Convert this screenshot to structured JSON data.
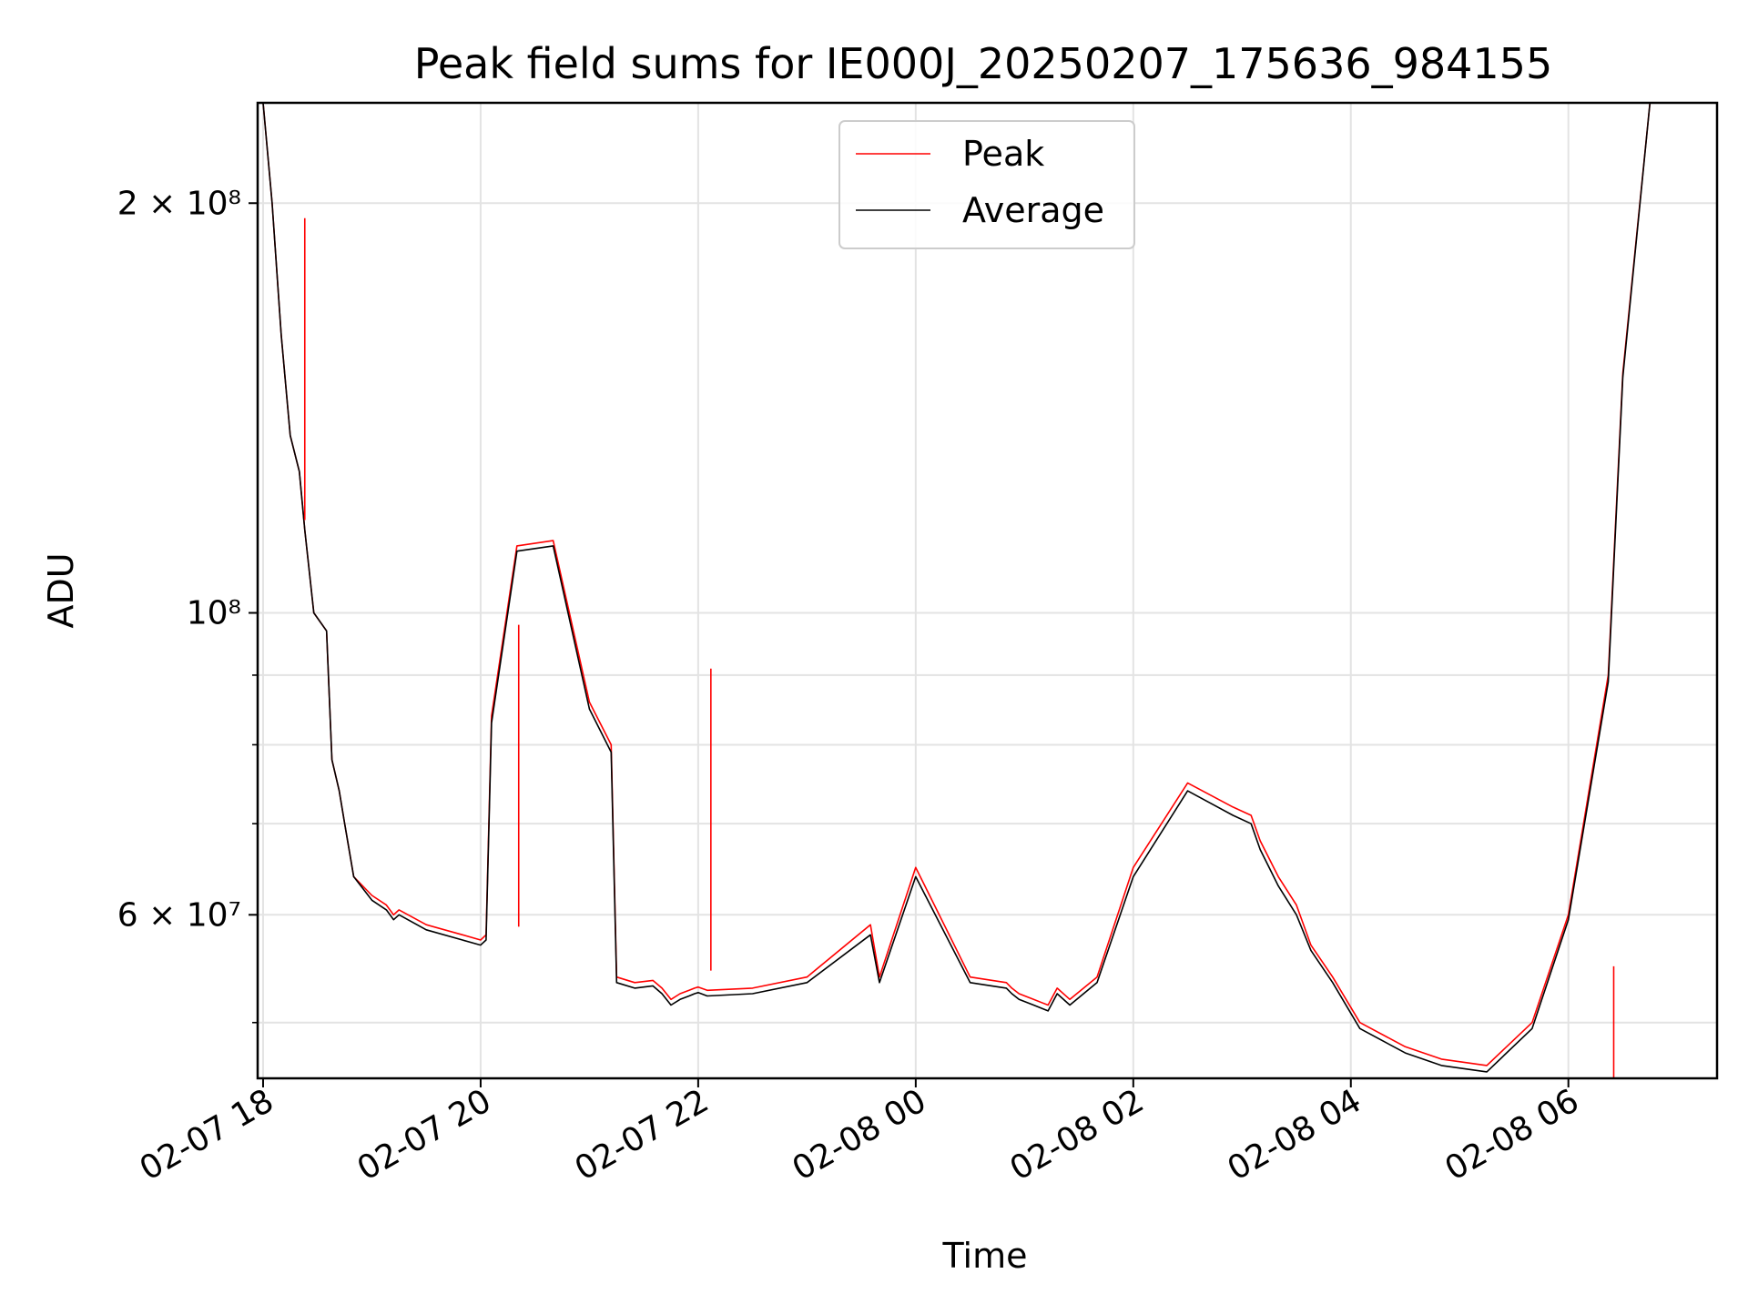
{
  "chart_data": {
    "type": "line",
    "title": "Peak field sums for IE000J_20250207_175636_984155",
    "xlabel": "Time",
    "ylabel": "ADU",
    "yscale": "log",
    "xlim": [
      "2025-02-07 17:57",
      "2025-02-08 07:22"
    ],
    "ylim": [
      45500000,
      237000000
    ],
    "grid": true,
    "legend_position": "top-center",
    "x_ticks": [
      {
        "t": "2025-02-07 18:00",
        "label": "02-07 18"
      },
      {
        "t": "2025-02-07 20:00",
        "label": "02-07 20"
      },
      {
        "t": "2025-02-07 22:00",
        "label": "02-07 22"
      },
      {
        "t": "2025-02-08 00:00",
        "label": "02-08 00"
      },
      {
        "t": "2025-02-08 02:00",
        "label": "02-08 02"
      },
      {
        "t": "2025-02-08 04:00",
        "label": "02-08 04"
      },
      {
        "t": "2025-02-08 06:00",
        "label": "02-08 06"
      }
    ],
    "y_major_ticks": [
      {
        "v": 200000000,
        "label": "2 × 10⁸"
      },
      {
        "v": 100000000,
        "label": "10⁸"
      },
      {
        "v": 60000000,
        "label": "6 × 10⁷"
      }
    ],
    "y_minor_ticks": [
      50000000,
      70000000,
      80000000,
      90000000
    ],
    "series": [
      {
        "name": "Peak",
        "color": "#ff0000",
        "x": [
          "2025-02-07 17:57",
          "2025-02-07 18:00",
          "2025-02-07 18:05",
          "2025-02-07 18:10",
          "2025-02-07 18:15",
          "2025-02-07 18:20",
          "2025-02-07 18:23",
          "2025-02-07 18:28",
          "2025-02-07 18:35",
          "2025-02-07 18:38",
          "2025-02-07 18:42",
          "2025-02-07 18:45",
          "2025-02-07 18:50",
          "2025-02-07 19:00",
          "2025-02-07 19:08",
          "2025-02-07 19:12",
          "2025-02-07 19:15",
          "2025-02-07 19:30",
          "2025-02-07 19:50",
          "2025-02-07 20:00",
          "2025-02-07 20:03",
          "2025-02-07 20:06",
          "2025-02-07 20:20",
          "2025-02-07 20:40",
          "2025-02-07 21:00",
          "2025-02-07 21:12",
          "2025-02-07 21:15",
          "2025-02-07 21:25",
          "2025-02-07 21:35",
          "2025-02-07 21:40",
          "2025-02-07 21:45",
          "2025-02-07 21:50",
          "2025-02-07 21:55",
          "2025-02-07 21:58",
          "2025-02-07 22:00",
          "2025-02-07 22:05",
          "2025-02-07 22:30",
          "2025-02-07 23:00",
          "2025-02-07 23:35",
          "2025-02-07 23:40",
          "2025-02-08 00:00",
          "2025-02-08 00:30",
          "2025-02-08 00:50",
          "2025-02-08 00:53",
          "2025-02-08 00:57",
          "2025-02-08 01:05",
          "2025-02-08 01:13",
          "2025-02-08 01:18",
          "2025-02-08 01:25",
          "2025-02-08 01:40",
          "2025-02-08 02:00",
          "2025-02-08 02:30",
          "2025-02-08 02:55",
          "2025-02-08 03:05",
          "2025-02-08 03:10",
          "2025-02-08 03:20",
          "2025-02-08 03:30",
          "2025-02-08 03:38",
          "2025-02-08 03:50",
          "2025-02-08 04:05",
          "2025-02-08 04:30",
          "2025-02-08 04:50",
          "2025-02-08 05:15",
          "2025-02-08 05:40",
          "2025-02-08 06:00",
          "2025-02-08 06:22",
          "2025-02-08 06:30",
          "2025-02-08 06:45",
          "2025-02-08 07:00",
          "2025-02-08 07:10",
          "2025-02-08 07:15",
          "2025-02-08 07:22"
        ],
        "y": [
          237000000,
          237000000,
          200000000,
          160000000,
          135000000,
          127000000,
          115000000,
          100000000,
          97000000,
          78000000,
          74000000,
          70000000,
          64000000,
          62000000,
          61000000,
          60000000,
          60500000,
          59000000,
          58000000,
          57500000,
          58000000,
          84000000,
          112000000,
          113000000,
          86000000,
          80000000,
          54000000,
          53500000,
          53700000,
          53000000,
          52000000,
          52500000,
          52800000,
          53000000,
          53100000,
          52800000,
          53000000,
          54000000,
          59000000,
          54000000,
          65000000,
          54000000,
          53500000,
          53000000,
          52500000,
          52000000,
          51500000,
          53000000,
          52000000,
          54000000,
          65000000,
          75000000,
          72000000,
          71000000,
          68000000,
          64000000,
          61000000,
          57000000,
          54000000,
          50000000,
          48000000,
          47000000,
          46500000,
          50000000,
          60000000,
          90000000,
          150000000,
          237000000,
          237000000,
          237000000,
          237000000,
          237000000
        ]
      },
      {
        "name": "Average",
        "color": "#000000",
        "x": [
          "2025-02-07 17:57",
          "2025-02-07 18:00",
          "2025-02-07 18:05",
          "2025-02-07 18:10",
          "2025-02-07 18:15",
          "2025-02-07 18:20",
          "2025-02-07 18:23",
          "2025-02-07 18:28",
          "2025-02-07 18:35",
          "2025-02-07 18:38",
          "2025-02-07 18:42",
          "2025-02-07 18:45",
          "2025-02-07 18:50",
          "2025-02-07 19:00",
          "2025-02-07 19:08",
          "2025-02-07 19:12",
          "2025-02-07 19:15",
          "2025-02-07 19:30",
          "2025-02-07 19:50",
          "2025-02-07 20:00",
          "2025-02-07 20:03",
          "2025-02-07 20:06",
          "2025-02-07 20:20",
          "2025-02-07 20:40",
          "2025-02-07 21:00",
          "2025-02-07 21:12",
          "2025-02-07 21:15",
          "2025-02-07 21:25",
          "2025-02-07 21:35",
          "2025-02-07 21:40",
          "2025-02-07 21:45",
          "2025-02-07 21:50",
          "2025-02-07 21:55",
          "2025-02-07 21:58",
          "2025-02-07 22:00",
          "2025-02-07 22:05",
          "2025-02-07 22:30",
          "2025-02-07 23:00",
          "2025-02-07 23:35",
          "2025-02-07 23:40",
          "2025-02-08 00:00",
          "2025-02-08 00:30",
          "2025-02-08 00:50",
          "2025-02-08 00:53",
          "2025-02-08 00:57",
          "2025-02-08 01:05",
          "2025-02-08 01:13",
          "2025-02-08 01:18",
          "2025-02-08 01:25",
          "2025-02-08 01:40",
          "2025-02-08 02:00",
          "2025-02-08 02:30",
          "2025-02-08 02:55",
          "2025-02-08 03:05",
          "2025-02-08 03:10",
          "2025-02-08 03:20",
          "2025-02-08 03:30",
          "2025-02-08 03:38",
          "2025-02-08 03:50",
          "2025-02-08 04:05",
          "2025-02-08 04:30",
          "2025-02-08 04:50",
          "2025-02-08 05:15",
          "2025-02-08 05:40",
          "2025-02-08 06:00",
          "2025-02-08 06:22",
          "2025-02-08 06:30",
          "2025-02-08 06:45",
          "2025-02-08 07:00",
          "2025-02-08 07:10",
          "2025-02-08 07:15",
          "2025-02-08 07:22"
        ],
        "y": [
          237000000,
          237000000,
          200000000,
          160000000,
          135000000,
          127000000,
          115000000,
          100000000,
          97000000,
          78000000,
          74000000,
          70000000,
          64000000,
          61500000,
          60500000,
          59500000,
          60000000,
          58500000,
          57500000,
          57000000,
          57500000,
          83000000,
          111000000,
          112000000,
          85000000,
          79000000,
          53500000,
          53000000,
          53200000,
          52500000,
          51500000,
          52000000,
          52300000,
          52500000,
          52600000,
          52300000,
          52500000,
          53500000,
          58000000,
          53500000,
          64000000,
          53500000,
          53000000,
          52500000,
          52000000,
          51500000,
          51000000,
          52500000,
          51500000,
          53500000,
          64000000,
          74000000,
          71000000,
          70000000,
          67000000,
          63000000,
          60000000,
          56500000,
          53500000,
          49500000,
          47500000,
          46500000,
          46000000,
          49500000,
          59500000,
          89000000,
          149000000,
          237000000,
          237000000,
          237000000,
          237000000,
          237000000
        ]
      }
    ],
    "spikes": [
      {
        "series": "Peak",
        "t": "2025-02-07 18:23",
        "y": 195000000
      },
      {
        "series": "Peak",
        "t": "2025-02-07 20:21",
        "y": 98000000
      },
      {
        "series": "Peak",
        "t": "2025-02-07 22:07",
        "y": 91000000
      },
      {
        "series": "Peak",
        "t": "2025-02-08 06:25",
        "y": 55000000
      }
    ]
  }
}
